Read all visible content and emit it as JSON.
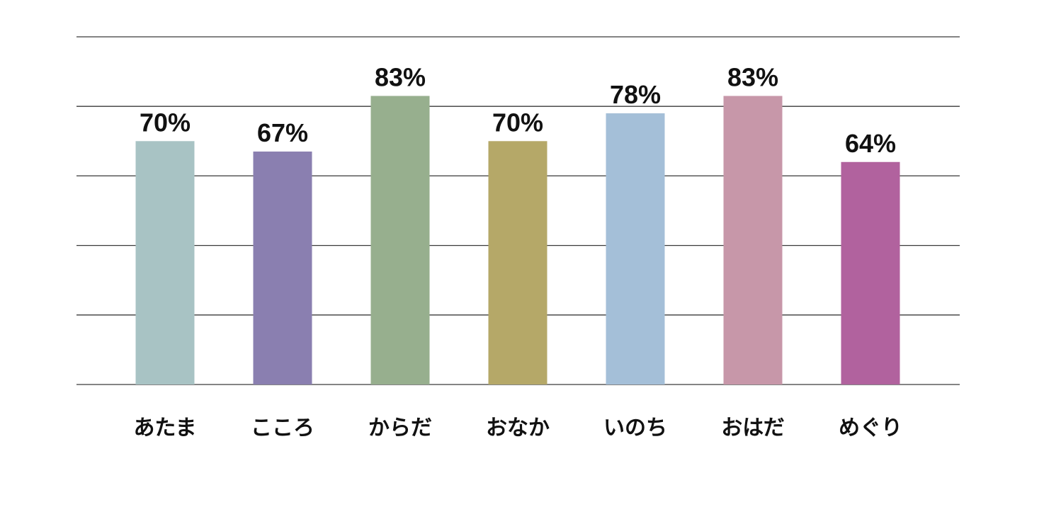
{
  "chart_data": {
    "type": "bar",
    "title": "",
    "xlabel": "",
    "ylabel": "",
    "categories": [
      "あたま",
      "こころ",
      "からだ",
      "おなか",
      "いのち",
      "おはだ",
      "めぐり"
    ],
    "values": [
      70,
      67,
      83,
      70,
      78,
      83,
      64
    ],
    "value_labels": [
      "70%",
      "67%",
      "83%",
      "70%",
      "78%",
      "83%",
      "64%"
    ],
    "colors": [
      "#a8c3c4",
      "#8a7fb0",
      "#97af8e",
      "#b5a868",
      "#a4bfd8",
      "#c797a9",
      "#b1629e"
    ],
    "ylim": [
      0,
      100
    ],
    "gridlines": [
      0,
      20,
      40,
      60,
      80,
      100
    ],
    "grid": true,
    "legend": "none"
  }
}
